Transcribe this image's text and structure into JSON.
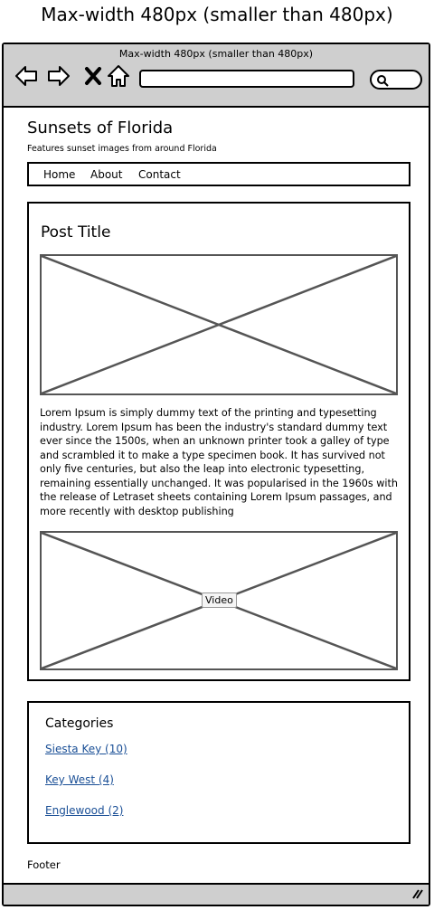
{
  "caption": "Max-width 480px (smaller than 480px)",
  "browser": {
    "window_title": "Max-width 480px (smaller than 480px)",
    "url": "",
    "search": ""
  },
  "site": {
    "title": "Sunsets of Florida",
    "tagline": "Features sunset images from around Florida"
  },
  "nav": {
    "items": [
      "Home",
      "About",
      "Contact"
    ]
  },
  "post": {
    "title": "Post Title",
    "body": "Lorem Ipsum is simply dummy text of the printing and typesetting industry. Lorem Ipsum has been the industry's standard dummy text ever since the 1500s, when an unknown printer took a galley of type and scrambled it to make a type specimen book. It has survived not only five centuries, but also the leap into electronic typesetting, remaining essentially unchanged. It was popularised in the 1960s with the release of Letraset sheets containing Lorem Ipsum passages, and more recently with desktop publishing",
    "video_label": "Video"
  },
  "categories": {
    "title": "Categories",
    "items": [
      "Siesta Key (10)",
      "Key West (4)",
      "Englewood (2)"
    ]
  },
  "footer": "Footer"
}
